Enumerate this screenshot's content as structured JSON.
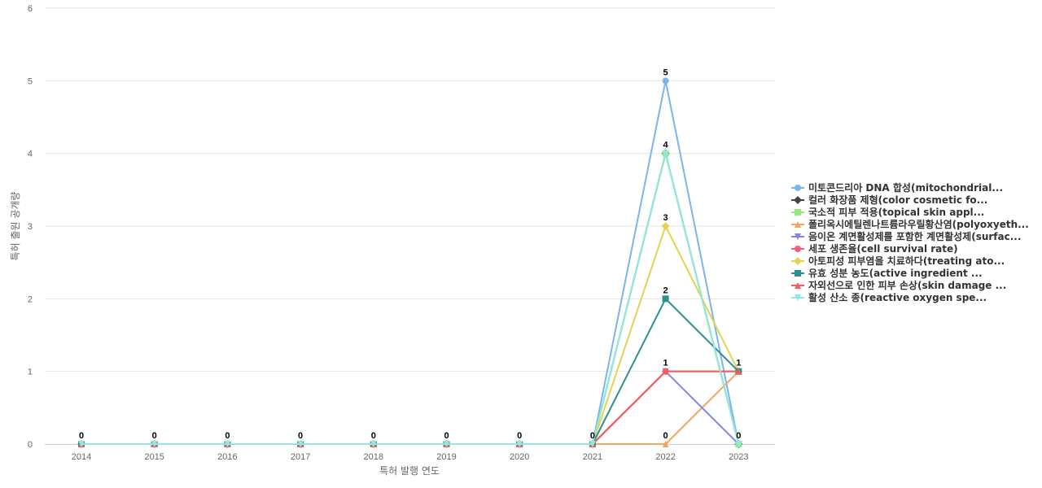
{
  "chart_data": {
    "type": "line",
    "xlabel": "특허 발행 연도",
    "ylabel": "특허 출원 공개량",
    "x": [
      "2014",
      "2015",
      "2016",
      "2017",
      "2018",
      "2019",
      "2020",
      "2021",
      "2022",
      "2023"
    ],
    "ylim": [
      0,
      6
    ],
    "yticks": [
      "0",
      "1",
      "2",
      "3",
      "4",
      "5",
      "6"
    ],
    "grid": true,
    "legend_position": "right",
    "series": [
      {
        "name": "미토콘드리아 DNA 합성(mitochondrial...",
        "color": "#7cb5ec",
        "marker": "circle",
        "values": [
          0,
          0,
          0,
          0,
          0,
          0,
          0,
          0,
          5,
          0
        ]
      },
      {
        "name": "컬러 화장품 제형(color cosmetic fo...",
        "color": "#434348",
        "marker": "diamond",
        "values": [
          0,
          0,
          0,
          0,
          0,
          0,
          0,
          0,
          4,
          0
        ]
      },
      {
        "name": "국소적 피부 적용(topical skin appl...",
        "color": "#90ed7d",
        "marker": "square",
        "values": [
          0,
          0,
          0,
          0,
          0,
          0,
          0,
          0,
          4,
          0
        ]
      },
      {
        "name": "폴리옥시에틸렌나트륨라우릴황산염(polyoxyeth...",
        "color": "#f7a35c",
        "marker": "triangle",
        "values": [
          0,
          0,
          0,
          0,
          0,
          0,
          0,
          0,
          0,
          1
        ]
      },
      {
        "name": "음이온 계면활성제를 포함한 계면활성제(surfac...",
        "color": "#8085e9",
        "marker": "triangle-down",
        "values": [
          0,
          0,
          0,
          0,
          0,
          0,
          0,
          0,
          1,
          0
        ]
      },
      {
        "name": "세포 생존율(cell survival rate)",
        "color": "#f15c80",
        "marker": "circle",
        "values": [
          0,
          0,
          0,
          0,
          0,
          0,
          0,
          0,
          1,
          1
        ]
      },
      {
        "name": "아토피성 피부염을 치료하다(treating ato...",
        "color": "#e4d354",
        "marker": "diamond",
        "values": [
          0,
          0,
          0,
          0,
          0,
          0,
          0,
          0,
          3,
          1
        ]
      },
      {
        "name": "유효 성분 농도(active ingredient ...",
        "color": "#2b908f",
        "marker": "square",
        "values": [
          0,
          0,
          0,
          0,
          0,
          0,
          0,
          0,
          2,
          1
        ]
      },
      {
        "name": "자외선으로 인한 피부 손상(skin damage ...",
        "color": "#f45b5b",
        "marker": "triangle",
        "values": [
          0,
          0,
          0,
          0,
          0,
          0,
          0,
          0,
          1,
          1
        ]
      },
      {
        "name": "활성 산소 종(reactive oxygen spe...",
        "color": "#91e8e1",
        "marker": "triangle-down",
        "values": [
          0,
          0,
          0,
          0,
          0,
          0,
          0,
          0,
          4,
          0
        ]
      }
    ],
    "data_labels": [
      {
        "x": "2014",
        "y": 0,
        "text": "0"
      },
      {
        "x": "2015",
        "y": 0,
        "text": "0"
      },
      {
        "x": "2016",
        "y": 0,
        "text": "0"
      },
      {
        "x": "2017",
        "y": 0,
        "text": "0"
      },
      {
        "x": "2018",
        "y": 0,
        "text": "0"
      },
      {
        "x": "2019",
        "y": 0,
        "text": "0"
      },
      {
        "x": "2020",
        "y": 0,
        "text": "0"
      },
      {
        "x": "2021",
        "y": 0,
        "text": "0"
      },
      {
        "x": "2022",
        "y": 5,
        "text": "5"
      },
      {
        "x": "2022",
        "y": 4,
        "text": "4"
      },
      {
        "x": "2022",
        "y": 3,
        "text": "3"
      },
      {
        "x": "2022",
        "y": 2,
        "text": "2"
      },
      {
        "x": "2022",
        "y": 1,
        "text": "1"
      },
      {
        "x": "2022",
        "y": 0,
        "text": "0"
      },
      {
        "x": "2023",
        "y": 1,
        "text": "1"
      },
      {
        "x": "2023",
        "y": 0,
        "text": "0"
      }
    ]
  }
}
